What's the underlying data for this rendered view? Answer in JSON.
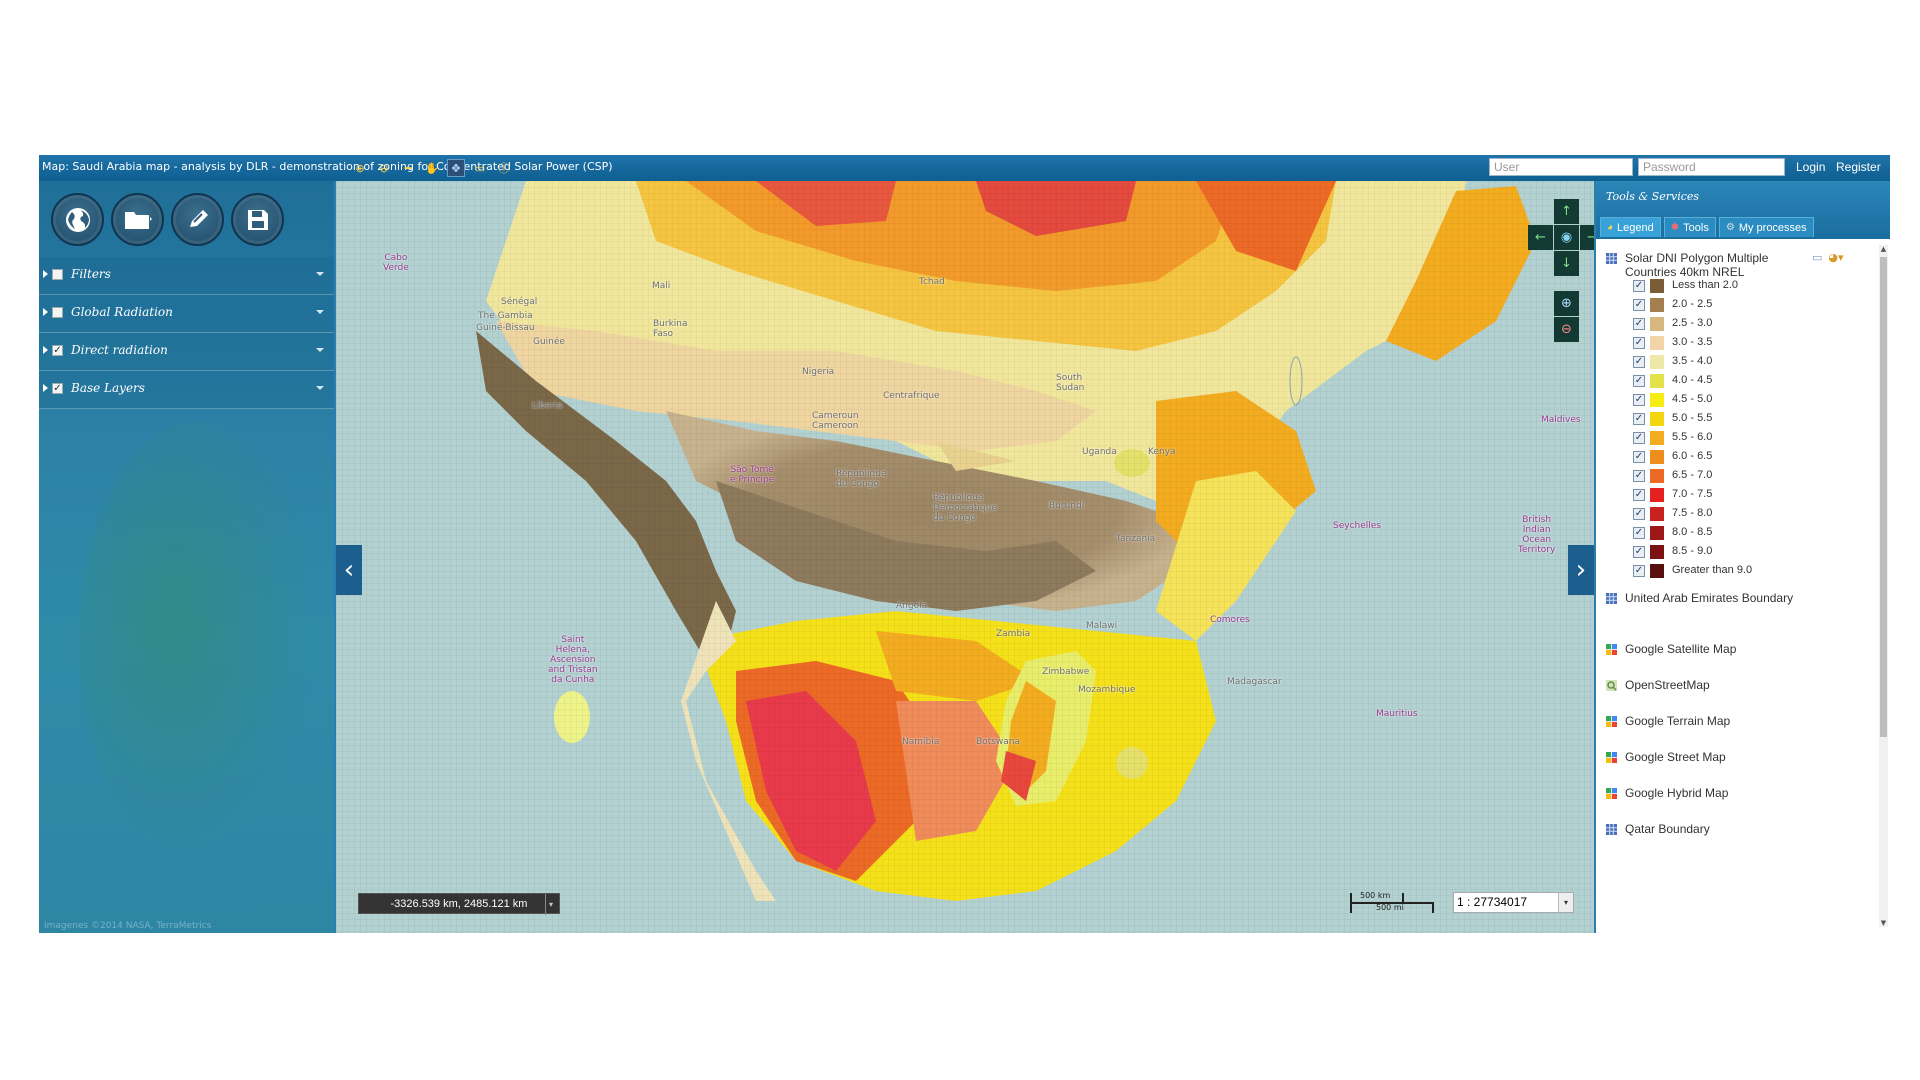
{
  "topbar": {
    "title": "Map: Saudi Arabia map - analysis by DLR - demonstration of zoning for Concentrated Solar Power (CSP)",
    "user_placeholder": "User",
    "password_placeholder": "Password",
    "login": "Login",
    "register": "Register"
  },
  "left_panel": {
    "layers": [
      {
        "label": "Filters",
        "checked": false
      },
      {
        "label": "Global Radiation",
        "checked": false
      },
      {
        "label": "Direct radiation",
        "checked": true
      },
      {
        "label": "Base Layers",
        "checked": true
      }
    ],
    "footer": "Imagenes ©2014 NASA, TerraMetrics"
  },
  "map": {
    "coords": "-3326.539 km, 2485.121 km",
    "scale_km": "500 km",
    "scale_mi": "500 mi",
    "scale": "1 : 27734017",
    "labels": [
      {
        "text": "Cabo\nVerde",
        "type": "island"
      },
      {
        "text": "Sénégal",
        "type": "country"
      },
      {
        "text": "The Gambia",
        "type": "country"
      },
      {
        "text": "Guiné-Bissau",
        "type": "country"
      },
      {
        "text": "Guinée",
        "type": "country"
      },
      {
        "text": "Mali",
        "type": "country"
      },
      {
        "text": "Burkina\nFaso",
        "type": "country"
      },
      {
        "text": "Nigeria",
        "type": "country"
      },
      {
        "text": "Liberia",
        "type": "country"
      },
      {
        "text": "Tchad",
        "type": "country"
      },
      {
        "text": "Centrafrique",
        "type": "country"
      },
      {
        "text": "Cameroun\nCameroon",
        "type": "country"
      },
      {
        "text": "South\nSudan",
        "type": "country"
      },
      {
        "text": "République\ndu Congo",
        "type": "country"
      },
      {
        "text": "République\nDémocratique\ndu Congo",
        "type": "country"
      },
      {
        "text": "Uganda",
        "type": "country"
      },
      {
        "text": "Kenya",
        "type": "country"
      },
      {
        "text": "Burundi",
        "type": "country"
      },
      {
        "text": "Tanzania",
        "type": "country"
      },
      {
        "text": "Angola",
        "type": "country"
      },
      {
        "text": "Zambia",
        "type": "country"
      },
      {
        "text": "Malawi",
        "type": "country"
      },
      {
        "text": "Mozambique",
        "type": "country"
      },
      {
        "text": "Zimbabwe",
        "type": "country"
      },
      {
        "text": "Namibia",
        "type": "country"
      },
      {
        "text": "Botswana",
        "type": "country"
      },
      {
        "text": "Madagascar",
        "type": "country"
      },
      {
        "text": "São Tomé\ne Príncipe",
        "type": "island"
      },
      {
        "text": "Saint\nHelena,\nAscension\nand Tristan\nda Cunha",
        "type": "island"
      },
      {
        "text": "Seychelles",
        "type": "island"
      },
      {
        "text": "Comores",
        "type": "island"
      },
      {
        "text": "Mauritius",
        "type": "island"
      },
      {
        "text": "Maldives",
        "type": "island"
      },
      {
        "text": "British\nIndian\nOcean\nTerritory",
        "type": "island"
      }
    ]
  },
  "right_panel": {
    "title": "Tools & Services",
    "tabs": [
      "Legend",
      "Tools",
      "My processes"
    ],
    "dni_layer": "Solar DNI Polygon Multiple\nCountries 40km NREL",
    "legend": [
      {
        "label": "Less than 2.0",
        "color": "#7a5c37"
      },
      {
        "label": "2.0 - 2.5",
        "color": "#a37f4f"
      },
      {
        "label": "2.5 - 3.0",
        "color": "#d7b67f"
      },
      {
        "label": "3.0 - 3.5",
        "color": "#f2d4a8"
      },
      {
        "label": "3.5 - 4.0",
        "color": "#ede7a8"
      },
      {
        "label": "4.0 - 4.5",
        "color": "#e4e24a"
      },
      {
        "label": "4.5 - 5.0",
        "color": "#f7ec12"
      },
      {
        "label": "5.0 - 5.5",
        "color": "#f5d50f"
      },
      {
        "label": "5.5 - 6.0",
        "color": "#f3ac1f"
      },
      {
        "label": "6.0 - 6.5",
        "color": "#ee8c1e"
      },
      {
        "label": "6.5 - 7.0",
        "color": "#ec6a26"
      },
      {
        "label": "7.0 - 7.5",
        "color": "#e5201f"
      },
      {
        "label": "7.5 - 8.0",
        "color": "#c9211d"
      },
      {
        "label": "8.0 - 8.5",
        "color": "#9d1717"
      },
      {
        "label": "8.5 - 9.0",
        "color": "#7a1212"
      },
      {
        "label": "Greater than 9.0",
        "color": "#5a0f0f"
      }
    ],
    "other_layers": [
      {
        "label": "United Arab Emirates Boundary",
        "icon": "wms-grid-icon"
      },
      {
        "label": "Google Satellite Map",
        "icon": "google-maps-icon"
      },
      {
        "label": "OpenStreetMap",
        "icon": "osm-icon"
      },
      {
        "label": "Google Terrain Map",
        "icon": "google-maps-icon"
      },
      {
        "label": "Google Street Map",
        "icon": "google-maps-icon"
      },
      {
        "label": "Google Hybrid Map",
        "icon": "google-maps-icon"
      },
      {
        "label": "Qatar Boundary",
        "icon": "wms-grid-icon"
      }
    ]
  }
}
